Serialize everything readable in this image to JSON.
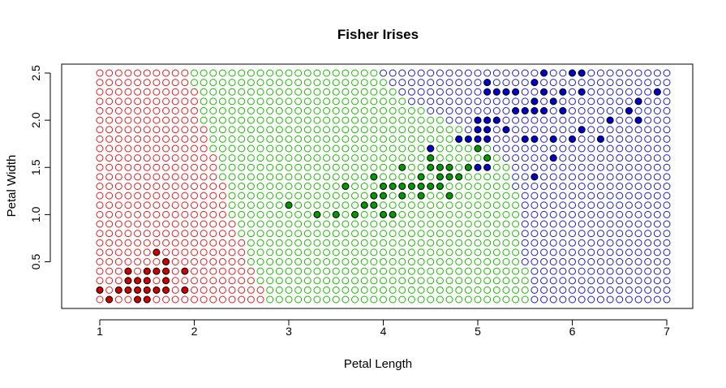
{
  "chart_data": {
    "type": "scatter",
    "title": "Fisher Irises",
    "xlabel": "Petal Length",
    "ylabel": "Petal Width",
    "xlim": [
      0.55,
      7.45
    ],
    "ylim": [
      -0.0,
      2.6
    ],
    "xticks": [
      1,
      2,
      3,
      4,
      5,
      6,
      7
    ],
    "yticks": [
      0.5,
      1.0,
      1.5,
      2.0,
      2.5
    ],
    "xtick_labels": [
      "1",
      "2",
      "3",
      "4",
      "5",
      "6",
      "7"
    ],
    "ytick_labels": [
      "0.5",
      "1.0",
      "1.5",
      "2.0",
      "2.5"
    ],
    "grid": false,
    "colors": {
      "setosa": "#e31a1c",
      "versicolor": "#1ab800",
      "virginica": "#1a1acc",
      "setosa_fill": "#cc0000",
      "versicolor_fill": "#009900",
      "virginica_fill": "#0000cc"
    },
    "background_grid": {
      "x_start": 1.0,
      "x_end": 7.0,
      "x_step": 0.1,
      "y_start": 0.1,
      "y_end": 2.5,
      "y_step": 0.1,
      "decision_boundary_setosa_versicolor": [
        [
          0.1,
          2.8
        ],
        [
          0.5,
          2.6
        ],
        [
          1.0,
          2.4
        ],
        [
          1.5,
          2.25
        ],
        [
          2.0,
          2.1
        ],
        [
          2.5,
          1.95
        ]
      ],
      "decision_boundary_versicolor_virginica": [
        [
          0.1,
          5.55
        ],
        [
          0.5,
          5.5
        ],
        [
          1.0,
          5.45
        ],
        [
          1.5,
          5.35
        ],
        [
          1.8,
          5.0
        ],
        [
          2.0,
          4.65
        ],
        [
          2.2,
          4.3
        ],
        [
          2.4,
          4.05
        ],
        [
          2.5,
          4.0
        ]
      ]
    },
    "series": [
      {
        "name": "setosa",
        "points": [
          [
            1.0,
            0.2
          ],
          [
            1.1,
            0.1
          ],
          [
            1.2,
            0.2
          ],
          [
            1.3,
            0.2
          ],
          [
            1.3,
            0.3
          ],
          [
            1.3,
            0.4
          ],
          [
            1.4,
            0.1
          ],
          [
            1.4,
            0.2
          ],
          [
            1.4,
            0.3
          ],
          [
            1.5,
            0.1
          ],
          [
            1.5,
            0.2
          ],
          [
            1.5,
            0.3
          ],
          [
            1.5,
            0.4
          ],
          [
            1.6,
            0.2
          ],
          [
            1.6,
            0.4
          ],
          [
            1.6,
            0.6
          ],
          [
            1.7,
            0.2
          ],
          [
            1.7,
            0.3
          ],
          [
            1.7,
            0.4
          ],
          [
            1.7,
            0.5
          ],
          [
            1.9,
            0.2
          ],
          [
            1.9,
            0.4
          ]
        ]
      },
      {
        "name": "versicolor",
        "points": [
          [
            3.0,
            1.1
          ],
          [
            3.3,
            1.0
          ],
          [
            3.5,
            1.0
          ],
          [
            3.6,
            1.3
          ],
          [
            3.7,
            1.0
          ],
          [
            3.8,
            1.1
          ],
          [
            3.9,
            1.1
          ],
          [
            3.9,
            1.2
          ],
          [
            3.9,
            1.4
          ],
          [
            4.0,
            1.0
          ],
          [
            4.0,
            1.2
          ],
          [
            4.0,
            1.3
          ],
          [
            4.1,
            1.0
          ],
          [
            4.1,
            1.3
          ],
          [
            4.2,
            1.2
          ],
          [
            4.2,
            1.3
          ],
          [
            4.2,
            1.5
          ],
          [
            4.3,
            1.3
          ],
          [
            4.4,
            1.2
          ],
          [
            4.4,
            1.3
          ],
          [
            4.4,
            1.4
          ],
          [
            4.5,
            1.3
          ],
          [
            4.5,
            1.5
          ],
          [
            4.5,
            1.6
          ],
          [
            4.5,
            1.7
          ],
          [
            4.6,
            1.3
          ],
          [
            4.6,
            1.4
          ],
          [
            4.6,
            1.5
          ],
          [
            4.7,
            1.2
          ],
          [
            4.7,
            1.4
          ],
          [
            4.7,
            1.5
          ],
          [
            4.8,
            1.4
          ],
          [
            4.8,
            1.8
          ],
          [
            4.9,
            1.5
          ],
          [
            5.0,
            1.7
          ],
          [
            5.1,
            1.6
          ]
        ]
      },
      {
        "name": "virginica",
        "points": [
          [
            4.5,
            1.7
          ],
          [
            4.8,
            1.8
          ],
          [
            4.9,
            1.8
          ],
          [
            5.0,
            1.5
          ],
          [
            5.0,
            1.8
          ],
          [
            5.0,
            1.9
          ],
          [
            5.0,
            2.0
          ],
          [
            5.1,
            1.5
          ],
          [
            5.1,
            1.8
          ],
          [
            5.1,
            1.9
          ],
          [
            5.1,
            2.0
          ],
          [
            5.1,
            2.3
          ],
          [
            5.1,
            2.4
          ],
          [
            5.2,
            2.0
          ],
          [
            5.2,
            2.3
          ],
          [
            5.3,
            1.9
          ],
          [
            5.3,
            2.3
          ],
          [
            5.4,
            2.1
          ],
          [
            5.4,
            2.3
          ],
          [
            5.5,
            1.8
          ],
          [
            5.5,
            2.1
          ],
          [
            5.6,
            1.4
          ],
          [
            5.6,
            1.8
          ],
          [
            5.6,
            2.1
          ],
          [
            5.6,
            2.2
          ],
          [
            5.6,
            2.4
          ],
          [
            5.7,
            2.1
          ],
          [
            5.7,
            2.3
          ],
          [
            5.7,
            2.5
          ],
          [
            5.8,
            1.6
          ],
          [
            5.8,
            1.8
          ],
          [
            5.8,
            2.2
          ],
          [
            5.9,
            2.1
          ],
          [
            5.9,
            2.3
          ],
          [
            6.0,
            1.8
          ],
          [
            6.0,
            2.5
          ],
          [
            6.1,
            1.9
          ],
          [
            6.1,
            2.3
          ],
          [
            6.1,
            2.5
          ],
          [
            6.3,
            1.8
          ],
          [
            6.4,
            2.0
          ],
          [
            6.6,
            2.1
          ],
          [
            6.7,
            2.0
          ],
          [
            6.7,
            2.2
          ],
          [
            6.9,
            2.3
          ]
        ]
      }
    ]
  }
}
